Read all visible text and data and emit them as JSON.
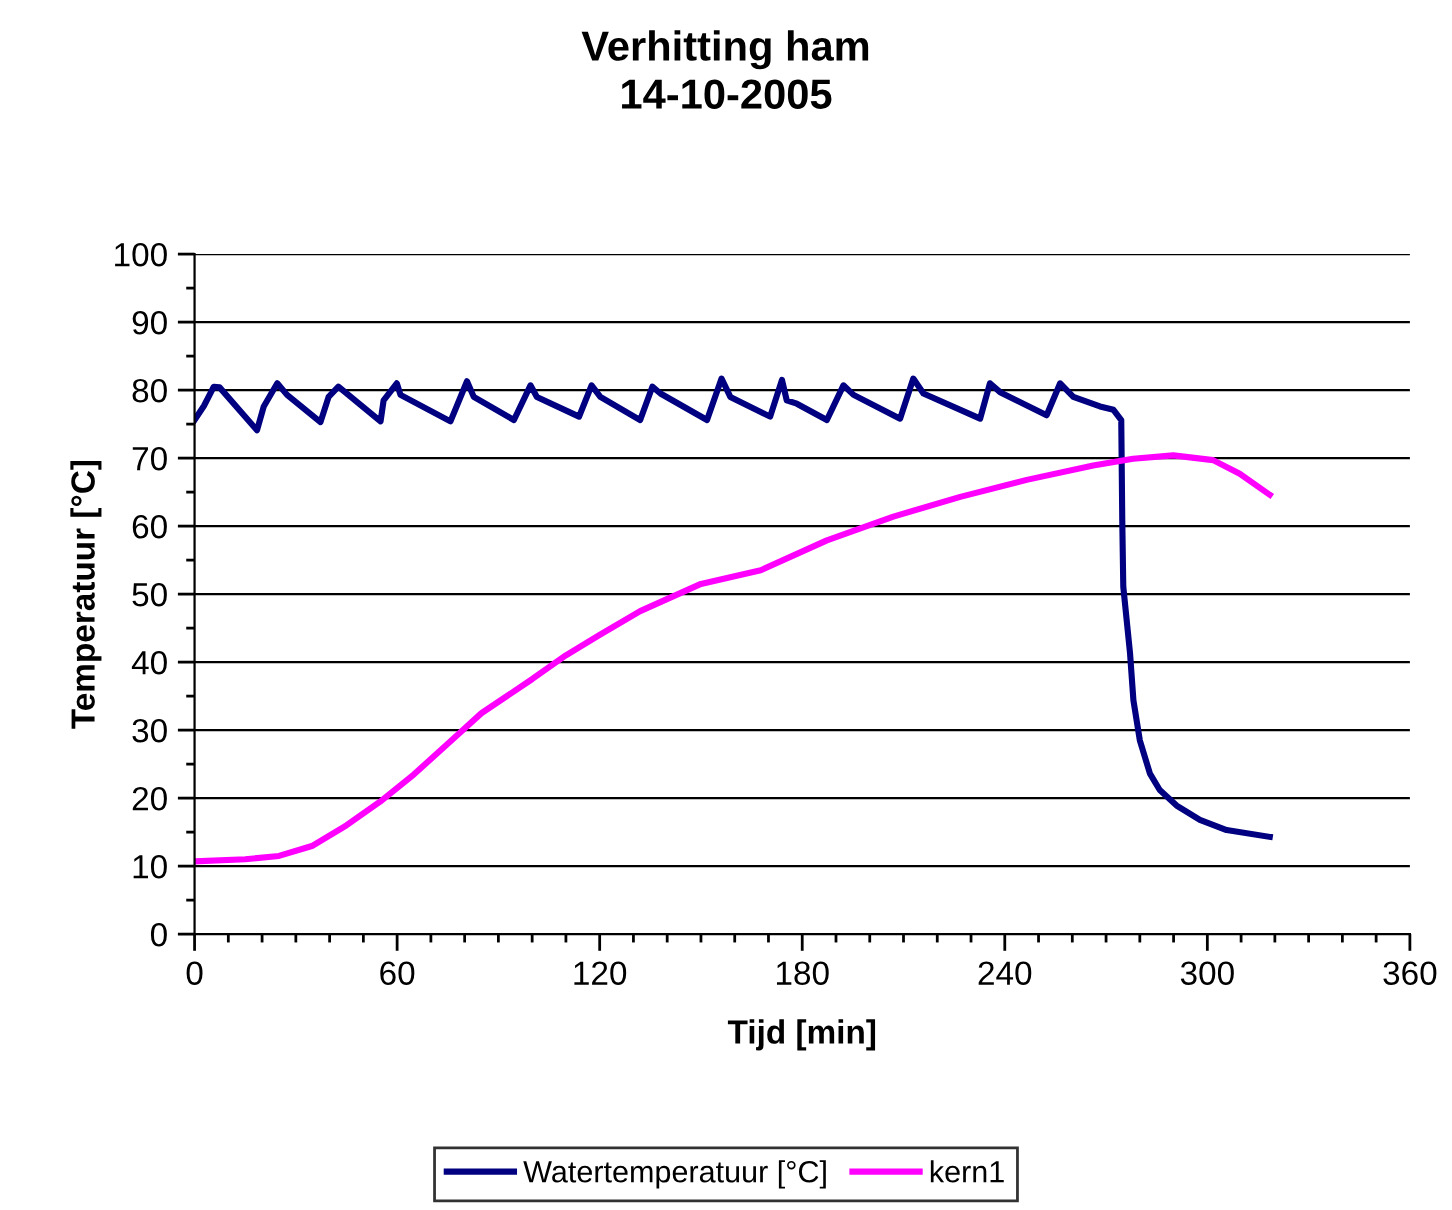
{
  "chart_data": {
    "type": "line",
    "title": "Verhitting ham\n14-10-2005",
    "xlabel": "Tijd [min]",
    "ylabel": "Temperatuur [°C]",
    "xlim": [
      0,
      360
    ],
    "xticks": [
      0,
      60,
      120,
      180,
      240,
      300,
      360
    ],
    "ylim": [
      0,
      100
    ],
    "yticks": [
      0,
      10,
      20,
      30,
      40,
      50,
      60,
      70,
      80,
      90,
      100
    ],
    "grid": "y",
    "legend": "bottom",
    "marker": "none",
    "line_style": "solid",
    "series": [
      {
        "name": "Watertemperatuur [°C]",
        "color": "#000080",
        "x": [
          0,
          2.8,
          5.7,
          7.4,
          18.5,
          20.5,
          24.5,
          27.4,
          37.3,
          39.7,
          42.6,
          55.1,
          56,
          59.9,
          61,
          75.8,
          80.7,
          82.7,
          94.6,
          99.5,
          101.4,
          113.9,
          117.6,
          120.2,
          132,
          135.6,
          138,
          151.8,
          156.1,
          158.7,
          170.5,
          174,
          175.4,
          178.4,
          187.3,
          192.2,
          195.2,
          209,
          212.9,
          215.9,
          232.7,
          235.6,
          238.6,
          252.4,
          256.4,
          260.3,
          268.2,
          272.2,
          274.5,
          274.8,
          275.1,
          277.1,
          278.1,
          280,
          283,
          285.9,
          290.9,
          297.8,
          305.7,
          318.5
        ],
        "values": [
          75.6,
          77.7,
          80.5,
          80.4,
          74.1,
          77.6,
          81,
          79.3,
          75.3,
          79,
          80.5,
          75.4,
          78.5,
          81,
          79.3,
          75.4,
          81.3,
          79,
          75.6,
          80.7,
          79,
          76.1,
          80.7,
          79,
          75.6,
          80.5,
          79.5,
          75.6,
          81.7,
          79,
          76.1,
          81.5,
          78.5,
          78,
          75.6,
          80.7,
          79.3,
          75.8,
          81.7,
          79.5,
          75.8,
          81,
          79.7,
          76.3,
          81,
          79,
          77.6,
          77.1,
          75.6,
          60.9,
          51.1,
          41.3,
          34.4,
          28.5,
          23.6,
          21.2,
          18.9,
          16.8,
          15.3,
          14.3
        ]
      },
      {
        "name": "kern1",
        "color": "#ff00ff",
        "x": [
          0,
          15,
          25,
          35,
          45,
          55,
          65,
          75,
          85,
          100,
          110,
          120,
          132,
          150,
          167.7,
          187.3,
          207,
          226.8,
          246.5,
          266.2,
          278,
          289.9,
          301.7,
          309.6,
          318.5
        ],
        "values": [
          10.7,
          11,
          11.5,
          13,
          16,
          19.5,
          23.5,
          28,
          32.5,
          37.5,
          41,
          44,
          47.5,
          51.5,
          53.5,
          57.9,
          61.4,
          64.3,
          66.8,
          68.9,
          69.9,
          70.4,
          69.7,
          67.7,
          64.6
        ]
      }
    ]
  }
}
